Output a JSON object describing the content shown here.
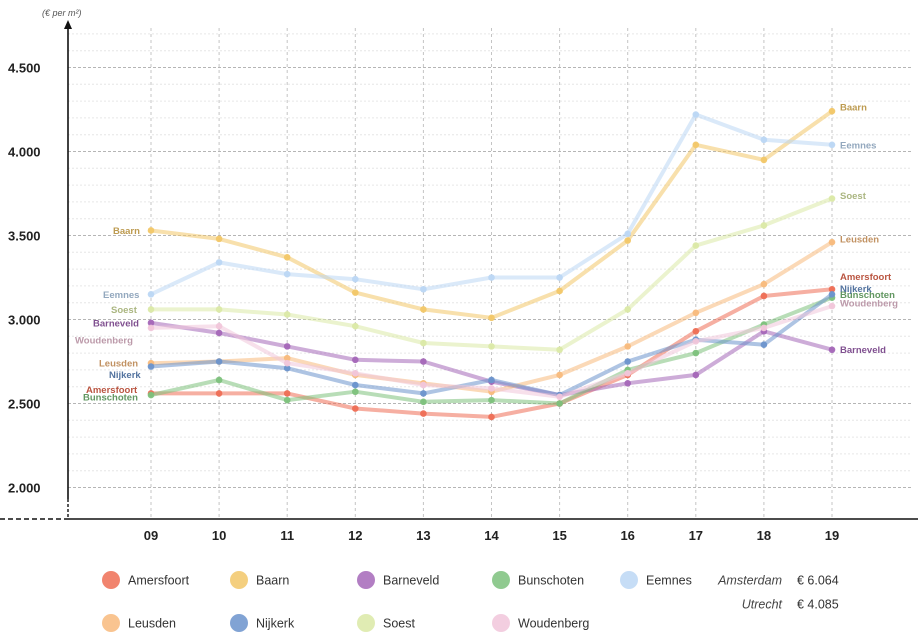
{
  "chart_data": {
    "type": "line",
    "title": "",
    "ylabel": "(€ per m²)",
    "xlabel": "",
    "x": [
      "09",
      "10",
      "11",
      "12",
      "13",
      "14",
      "15",
      "16",
      "17",
      "18",
      "19"
    ],
    "ylim": [
      1900,
      4800
    ],
    "yticks": [
      {
        "value": 2000,
        "label": "2.000"
      },
      {
        "value": 2500,
        "label": "2.500"
      },
      {
        "value": 3000,
        "label": "3.000"
      },
      {
        "value": 3500,
        "label": "3.500"
      },
      {
        "value": 4000,
        "label": "4.000"
      },
      {
        "value": 4500,
        "label": "4.500"
      }
    ],
    "grid": true,
    "legend_position": "bottom",
    "series": [
      {
        "name": "Amersfoort",
        "color": "#ee6e55",
        "start_label": "Amersfoort",
        "end_label": "Amersfoort",
        "values": [
          2560,
          2560,
          2560,
          2470,
          2440,
          2420,
          2500,
          2670,
          2930,
          3140,
          3180
        ]
      },
      {
        "name": "Baarn",
        "color": "#f2c768",
        "start_label": "Baarn",
        "end_label": "Baarn",
        "values": [
          3530,
          3480,
          3370,
          3160,
          3060,
          3010,
          3170,
          3470,
          4040,
          3950,
          4240
        ]
      },
      {
        "name": "Barneveld",
        "color": "#a467b8",
        "start_label": "Barneveld",
        "end_label": "Barneveld",
        "values": [
          2980,
          2920,
          2840,
          2760,
          2750,
          2630,
          2550,
          2620,
          2670,
          2930,
          2820
        ]
      },
      {
        "name": "Bunschoten",
        "color": "#7dc17c",
        "start_label": "Bunschoten",
        "end_label": "Bunschoten",
        "values": [
          2550,
          2640,
          2520,
          2570,
          2510,
          2520,
          2500,
          2700,
          2800,
          2970,
          3130
        ]
      },
      {
        "name": "Eemnes",
        "color": "#bcd7f4",
        "start_label": "Eemnes",
        "end_label": "Eemnes",
        "values": [
          3150,
          3340,
          3270,
          3240,
          3180,
          3250,
          3250,
          3510,
          4220,
          4070,
          4040
        ]
      },
      {
        "name": "Leusden",
        "color": "#f8ba7c",
        "start_label": "Leusden",
        "end_label": "Leusden",
        "values": [
          2740,
          2750,
          2770,
          2670,
          2620,
          2570,
          2670,
          2840,
          3040,
          3210,
          3460
        ]
      },
      {
        "name": "Nijkerk",
        "color": "#6b93cc",
        "start_label": "Nijkerk",
        "end_label": "Nijkerk",
        "values": [
          2720,
          2750,
          2710,
          2610,
          2560,
          2640,
          2550,
          2750,
          2880,
          2850,
          3150
        ]
      },
      {
        "name": "Soest",
        "color": "#dbe9a6",
        "start_label": "Soest",
        "end_label": "Soest",
        "values": [
          3060,
          3060,
          3030,
          2960,
          2860,
          2840,
          2820,
          3060,
          3440,
          3560,
          3720
        ]
      },
      {
        "name": "Woudenberg",
        "color": "#f1c6da",
        "start_label": "Woudenberg",
        "end_label": "Woudenberg",
        "values": [
          2950,
          2960,
          2740,
          2680,
          2610,
          2590,
          2540,
          2680,
          2870,
          2950,
          3080
        ]
      }
    ],
    "reference_prices": [
      {
        "city": "Amsterdam",
        "price": "€ 6.064"
      },
      {
        "city": "Utrecht",
        "price": "€ 4.085"
      }
    ]
  }
}
